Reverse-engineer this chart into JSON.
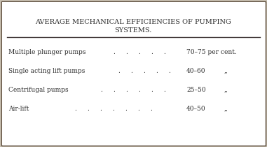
{
  "title_line1": "AVERAGE MECHANICAL EFFICIENCIES OF PUMPING",
  "title_line2": "SYSTEMS.",
  "rows": [
    {
      "label": "Multiple plunger pumps",
      "n_dots": 5,
      "value": "70–75 per cent.",
      "unit": ""
    },
    {
      "label": "Single acting lift pumps",
      "n_dots": 5,
      "value": "40–60",
      "unit": ",,"
    },
    {
      "label": "Centrifugal pumps",
      "n_dots": 6,
      "value": "25–50",
      "unit": ",,"
    },
    {
      "label": "Air-lift",
      "n_dots": 7,
      "value": "40–50",
      "unit": ",,"
    }
  ],
  "bg_color": "#ffffff",
  "outer_bg": "#c8bfb0",
  "text_color": "#2a2a2a",
  "title_fontsize": 7.0,
  "row_fontsize": 6.5,
  "border_color": "#5a4a3a",
  "rule_color": "#3a3030"
}
